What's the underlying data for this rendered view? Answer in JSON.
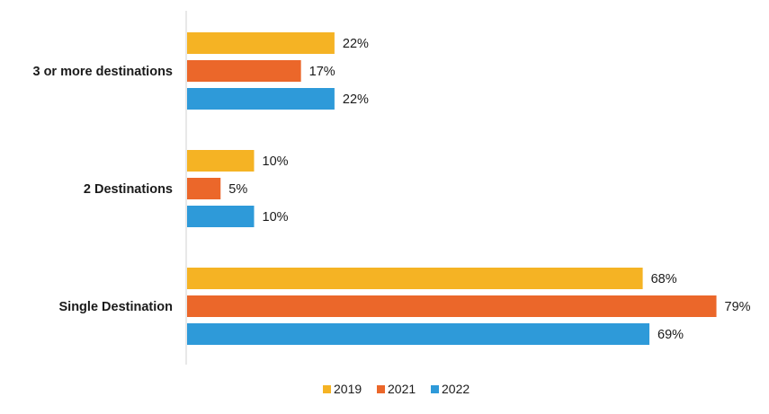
{
  "chart_data": {
    "type": "bar",
    "orientation": "horizontal",
    "categories": [
      "3 or more destinations",
      "2 Destinations",
      "Single Destination"
    ],
    "series": [
      {
        "name": "2019",
        "values": [
          22,
          10,
          68
        ],
        "color": "#F5B324"
      },
      {
        "name": "2021",
        "values": [
          17,
          5,
          79
        ],
        "color": "#EB672A"
      },
      {
        "name": "2022",
        "values": [
          22,
          10,
          69
        ],
        "color": "#2E9AD9"
      }
    ],
    "value_suffix": "%",
    "xlim": [
      0,
      80
    ],
    "grid": false,
    "legend": "bottom"
  }
}
